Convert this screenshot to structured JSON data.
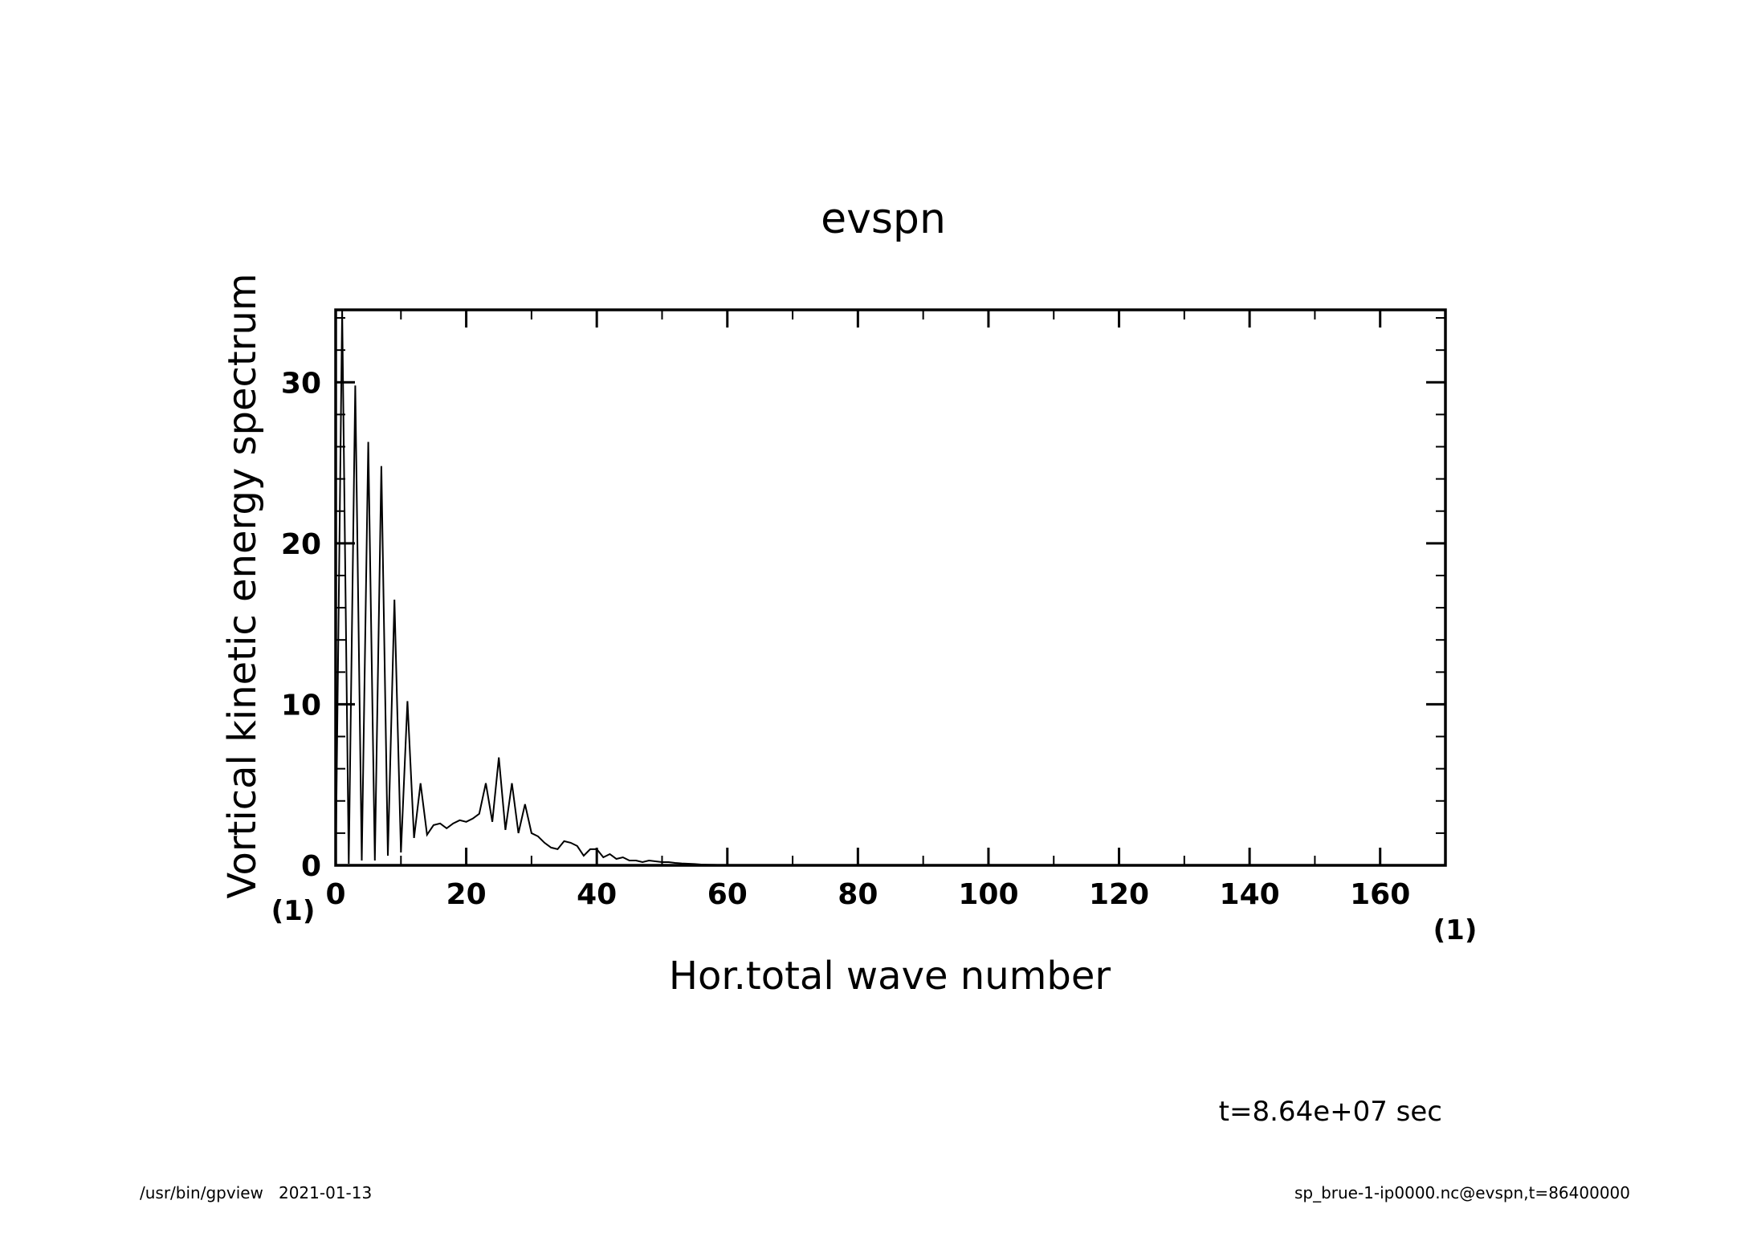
{
  "chart_data": {
    "type": "line",
    "title": "evspn",
    "xlabel": "Hor.total wave number",
    "ylabel": "Vortical kinetic energy spectrum",
    "x_unit": "(1)",
    "y_unit": "(1)",
    "xlim": [
      0,
      170
    ],
    "ylim": [
      0,
      34.5
    ],
    "x_ticks": [
      0,
      20,
      40,
      60,
      80,
      100,
      120,
      140,
      160
    ],
    "y_ticks": [
      0,
      10,
      20,
      30
    ],
    "grid": false,
    "line_color": "#000000",
    "series": [
      {
        "x": [
          0,
          1,
          2,
          3,
          4,
          5,
          6,
          7,
          8,
          9,
          10,
          11,
          12,
          13,
          14,
          15,
          16,
          17,
          18,
          19,
          20,
          21,
          22,
          23,
          24,
          25,
          26,
          27,
          28,
          29,
          30,
          31,
          32,
          33,
          34,
          35,
          36,
          37,
          38,
          39,
          40,
          41,
          42,
          43,
          44,
          45,
          46,
          47,
          48,
          49,
          50,
          51,
          52,
          53,
          54,
          55,
          56,
          57,
          58,
          59,
          60,
          62,
          64,
          66,
          68,
          70,
          80,
          90,
          100,
          110,
          120,
          130,
          140,
          150,
          160,
          170
        ],
        "y": [
          0,
          34.5,
          0.1,
          29.8,
          0.3,
          26.3,
          0.3,
          24.8,
          0.6,
          16.5,
          0.8,
          10.2,
          1.7,
          5.1,
          1.9,
          2.5,
          2.6,
          2.3,
          2.6,
          2.8,
          2.7,
          2.9,
          3.2,
          5.1,
          2.7,
          6.7,
          2.2,
          5.1,
          2.0,
          3.8,
          2.0,
          1.8,
          1.4,
          1.1,
          1.0,
          1.5,
          1.4,
          1.2,
          0.6,
          1.0,
          1.0,
          0.5,
          0.7,
          0.4,
          0.5,
          0.3,
          0.3,
          0.2,
          0.3,
          0.25,
          0.2,
          0.2,
          0.15,
          0.12,
          0.1,
          0.08,
          0.05,
          0.04,
          0.03,
          0.02,
          0.02,
          0.01,
          0.01,
          0.01,
          0.01,
          0.01,
          0,
          0,
          0,
          0,
          0,
          0,
          0,
          0,
          0,
          0
        ]
      }
    ]
  },
  "annotations": {
    "time": "t=8.64e+07 sec",
    "footer_left": "/usr/bin/gpview   2021-01-13",
    "footer_right": "sp_brue-1-ip0000.nc@evspn,t=86400000"
  }
}
